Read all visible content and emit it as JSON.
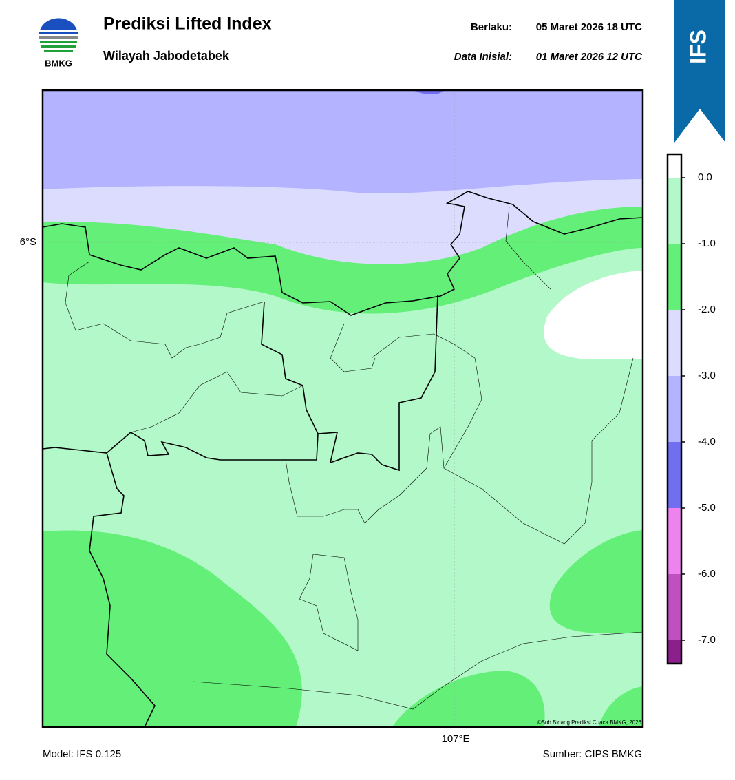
{
  "header": {
    "logo_text": "BMKG",
    "title": "Prediksi Lifted Index",
    "subtitle": "Wilayah Jabodetabek",
    "valid_label": "Berlaku:",
    "valid_time": "05 Maret 2026 18 UTC",
    "init_label": "Data Inisial:",
    "init_time": "01 Maret 2026 12 UTC",
    "badge": "IFS"
  },
  "map": {
    "lat_label": "6°S",
    "lon_label": "107°E",
    "credit": "©Sub Bidang Prediksi Cuaca BMKG, 2026"
  },
  "colorbar": {
    "labels": [
      "0.0",
      "-1.0",
      "-2.0",
      "-3.0",
      "-4.0",
      "-5.0",
      "-6.0",
      "-7.0"
    ],
    "colors": [
      "#ffffff",
      "#b3f8c8",
      "#63ef78",
      "#dcdcff",
      "#b3b3ff",
      "#6f6ff0",
      "#ee82ee",
      "#c050c0",
      "#8b1f8b"
    ]
  },
  "footer": {
    "model": "Model: IFS 0.125",
    "source": "Sumber: CIPS BMKG"
  }
}
